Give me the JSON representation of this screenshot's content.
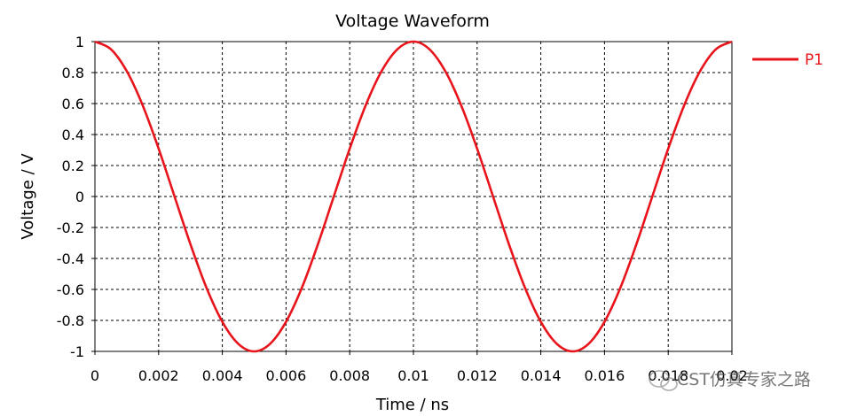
{
  "chart_data": {
    "type": "line",
    "title": "Voltage Waveform",
    "xlabel": "Time / ns",
    "ylabel": "Voltage / V",
    "xlim": [
      0,
      0.02
    ],
    "ylim": [
      -1,
      1
    ],
    "x_ticks": [
      "0",
      "0.002",
      "0.004",
      "0.006",
      "0.008",
      "0.01",
      "0.012",
      "0.014",
      "0.016",
      "0.018",
      "0.02"
    ],
    "y_ticks": [
      "1",
      "0.8",
      "0.6",
      "0.4",
      "0.2",
      "0",
      "-0.2",
      "-0.4",
      "-0.6",
      "-0.8",
      "-1"
    ],
    "grid": true,
    "legend_position": "top-right",
    "series": [
      {
        "name": "P1",
        "color": "#e8141b",
        "x": [
          0,
          0.0005,
          0.001,
          0.0015,
          0.002,
          0.0025,
          0.003,
          0.0035,
          0.004,
          0.0045,
          0.005,
          0.0055,
          0.006,
          0.0065,
          0.007,
          0.0075,
          0.008,
          0.0085,
          0.009,
          0.0095,
          0.01,
          0.0105,
          0.011,
          0.0115,
          0.012,
          0.0125,
          0.013,
          0.0135,
          0.014,
          0.0145,
          0.015,
          0.0155,
          0.016,
          0.0165,
          0.017,
          0.0175,
          0.018,
          0.0185,
          0.019,
          0.0195,
          0.02
        ],
        "y": [
          1,
          0.951,
          0.809,
          0.588,
          0.309,
          0,
          -0.309,
          -0.588,
          -0.809,
          -0.951,
          -1,
          -0.951,
          -0.809,
          -0.588,
          -0.309,
          0,
          0.309,
          0.588,
          0.809,
          0.951,
          1,
          0.951,
          0.809,
          0.588,
          0.309,
          0,
          -0.309,
          -0.588,
          -0.809,
          -0.951,
          -1,
          -0.951,
          -0.809,
          -0.588,
          -0.309,
          0,
          0.309,
          0.588,
          0.809,
          0.951,
          1
        ]
      }
    ]
  },
  "watermark": {
    "icon": "wechat-icon",
    "text": "CST仿真专家之路"
  }
}
